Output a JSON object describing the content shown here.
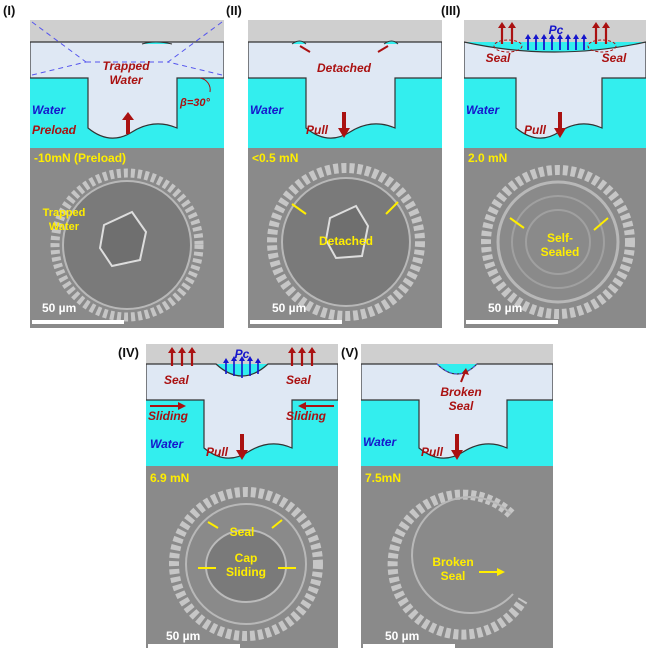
{
  "panels": [
    {
      "id": "I",
      "roman": "(I)",
      "diagram": {
        "water": "Water",
        "center": [
          "Trapped",
          "Water"
        ],
        "angle": "β=30°",
        "action": "Preload"
      },
      "photo": {
        "force": "-10mN (Preload)",
        "labels": [
          "Trapped",
          "Water"
        ],
        "scale": "50 µm"
      }
    },
    {
      "id": "II",
      "roman": "(II)",
      "diagram": {
        "water": "Water",
        "center": "Detached",
        "action": "Pull"
      },
      "photo": {
        "force": "<0.5 mN",
        "labels": "Detached",
        "scale": "50 µm"
      }
    },
    {
      "id": "III",
      "roman": "(III)",
      "diagram": {
        "water": "Water",
        "seal_left": "Seal",
        "seal_right": "Seal",
        "pc": "Pc",
        "action": "Pull"
      },
      "photo": {
        "force": "2.0 mN",
        "labels": [
          "Self-",
          "Sealed"
        ],
        "scale": "50 µm"
      }
    },
    {
      "id": "IV",
      "roman": "(IV)",
      "diagram": {
        "water": "Water",
        "seal_left": "Seal",
        "seal_right": "Seal",
        "pc": "Pc",
        "slide_left": "Sliding",
        "slide_right": "Sliding",
        "action": "Pull"
      },
      "photo": {
        "force": "6.9 mN",
        "seal": "Seal",
        "center": [
          "Cap",
          "Sliding"
        ],
        "scale": "50 µm"
      }
    },
    {
      "id": "V",
      "roman": "(V)",
      "diagram": {
        "water": "Water",
        "center": [
          "Broken",
          "Seal"
        ],
        "action": "Pull"
      },
      "photo": {
        "force": "7.5mN",
        "labels": [
          "Broken",
          "Seal"
        ],
        "scale": "50 µm"
      }
    }
  ],
  "colors": {
    "water": "#33eeee",
    "top": "#cfcfcf",
    "body": "#dfe8f4",
    "photo": "#8a8a8a",
    "arrow_red": "#aa1111",
    "label_red": "#aa1111",
    "label_blue": "#1515cc",
    "label_yellow": "#ffee00"
  }
}
